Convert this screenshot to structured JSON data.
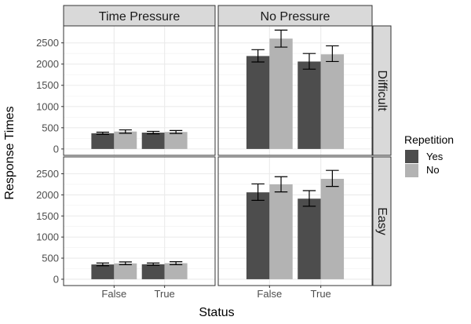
{
  "chart_data": {
    "type": "bar",
    "xlabel": "Status",
    "ylabel": "Response Times",
    "categories": [
      "False",
      "True"
    ],
    "yticks": [
      0,
      500,
      1000,
      1500,
      2000,
      2500
    ],
    "ylim": [
      -150,
      2900
    ],
    "grid": true,
    "legend": {
      "title": "Repetition",
      "position": "right",
      "entries": [
        "Yes",
        "No"
      ]
    },
    "colors": {
      "Yes": "#4d4d4d",
      "No": "#b3b3b3"
    },
    "column_facets": [
      "Time Pressure",
      "No Pressure"
    ],
    "row_facets": [
      "Difficult",
      "Easy"
    ],
    "panels": [
      {
        "col": "Time Pressure",
        "row": "Difficult",
        "series": [
          {
            "name": "Yes",
            "values": [
              370,
              385
            ],
            "errors": [
              [
                345,
                395
              ],
              [
                355,
                415
              ]
            ]
          },
          {
            "name": "No",
            "values": [
              410,
              400
            ],
            "errors": [
              [
                370,
                450
              ],
              [
                365,
                435
              ]
            ]
          }
        ]
      },
      {
        "col": "No Pressure",
        "row": "Difficult",
        "series": [
          {
            "name": "Yes",
            "values": [
              2190,
              2060
            ],
            "errors": [
              [
                2050,
                2340
              ],
              [
                1880,
                2250
              ]
            ]
          },
          {
            "name": "No",
            "values": [
              2600,
              2230
            ],
            "errors": [
              [
                2400,
                2800
              ],
              [
                2060,
                2430
              ]
            ]
          }
        ]
      },
      {
        "col": "Time Pressure",
        "row": "Easy",
        "series": [
          {
            "name": "Yes",
            "values": [
              350,
              355
            ],
            "errors": [
              [
                320,
                385
              ],
              [
                330,
                385
              ]
            ]
          },
          {
            "name": "No",
            "values": [
              375,
              380
            ],
            "errors": [
              [
                345,
                410
              ],
              [
                345,
                415
              ]
            ]
          }
        ]
      },
      {
        "col": "No Pressure",
        "row": "Easy",
        "series": [
          {
            "name": "Yes",
            "values": [
              2060,
              1910
            ],
            "errors": [
              [
                1870,
                2260
              ],
              [
                1730,
                2100
              ]
            ]
          },
          {
            "name": "No",
            "values": [
              2250,
              2380
            ],
            "errors": [
              [
                2070,
                2430
              ],
              [
                2200,
                2580
              ]
            ]
          }
        ]
      }
    ]
  }
}
